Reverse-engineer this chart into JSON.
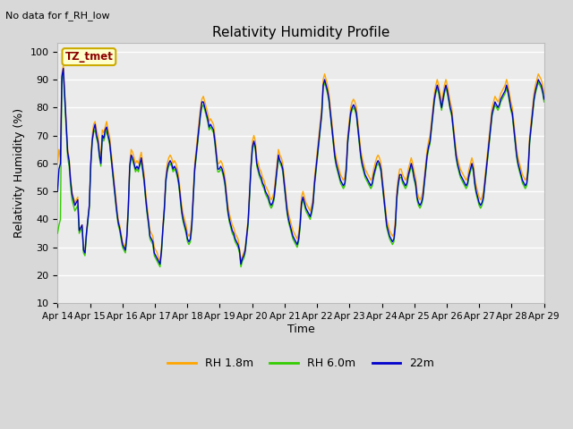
{
  "title": "Relativity Humidity Profile",
  "subtitle": "No data for f_RH_low",
  "ylabel": "Relativity Humidity (%)",
  "xlabel": "Time",
  "ylim": [
    10,
    103
  ],
  "yticks": [
    10,
    20,
    30,
    40,
    50,
    60,
    70,
    80,
    90,
    100
  ],
  "tz_label": "TZ_tmet",
  "legend": [
    "RH 1.8m",
    "RH 6.0m",
    "22m"
  ],
  "colors": {
    "rh18": "#FFA500",
    "rh6": "#33CC00",
    "m22": "#0000CC"
  },
  "background_color": "#D8D8D8",
  "plot_bg": "#EBEBEB",
  "grid_color": "#FFFFFF",
  "x_tick_labels": [
    "Apr 14",
    "Apr 15",
    "Apr 16",
    "Apr 17",
    "Apr 18",
    "Apr 19",
    "Apr 20",
    "Apr 21",
    "Apr 22",
    "Apr 23",
    "Apr 24",
    "Apr 25",
    "Apr 26",
    "Apr 27",
    "Apr 28",
    "Apr 29"
  ],
  "figsize": [
    6.4,
    4.8
  ],
  "dpi": 100,
  "line_width": 1.0,
  "rh18": [
    60,
    65,
    62,
    92,
    95,
    85,
    75,
    65,
    62,
    55,
    50,
    48,
    46,
    47,
    48,
    36,
    37,
    38,
    29,
    28,
    35,
    40,
    45,
    60,
    70,
    74,
    75,
    72,
    70,
    65,
    62,
    72,
    71,
    73,
    75,
    72,
    70,
    65,
    60,
    55,
    50,
    45,
    40,
    38,
    35,
    32,
    31,
    30,
    35,
    45,
    60,
    65,
    64,
    62,
    60,
    61,
    60,
    62,
    64,
    60,
    56,
    50,
    45,
    40,
    36,
    35,
    34,
    30,
    29,
    28,
    26,
    25,
    30,
    38,
    45,
    55,
    60,
    62,
    63,
    62,
    60,
    61,
    60,
    58,
    55,
    50,
    45,
    42,
    40,
    38,
    35,
    34,
    35,
    40,
    50,
    60,
    65,
    70,
    75,
    80,
    83,
    84,
    82,
    80,
    78,
    75,
    76,
    75,
    74,
    70,
    65,
    60,
    60,
    61,
    60,
    58,
    55,
    50,
    45,
    42,
    40,
    38,
    37,
    35,
    34,
    33,
    30,
    25,
    27,
    28,
    30,
    35,
    40,
    50,
    60,
    68,
    70,
    68,
    62,
    60,
    58,
    57,
    55,
    54,
    52,
    51,
    50,
    48,
    47,
    48,
    50,
    55,
    60,
    65,
    63,
    62,
    60,
    55,
    50,
    45,
    42,
    40,
    38,
    36,
    35,
    34,
    33,
    35,
    40,
    48,
    50,
    48,
    46,
    45,
    44,
    43,
    45,
    48,
    55,
    60,
    65,
    70,
    75,
    80,
    90,
    92,
    90,
    88,
    85,
    80,
    75,
    70,
    65,
    62,
    60,
    58,
    56,
    55,
    54,
    55,
    60,
    70,
    75,
    80,
    82,
    83,
    82,
    80,
    75,
    70,
    65,
    62,
    60,
    58,
    57,
    56,
    55,
    54,
    55,
    58,
    60,
    62,
    63,
    62,
    60,
    55,
    50,
    45,
    40,
    38,
    36,
    35,
    34,
    35,
    40,
    50,
    55,
    58,
    58,
    56,
    55,
    54,
    55,
    58,
    60,
    62,
    60,
    57,
    55,
    50,
    48,
    47,
    48,
    50,
    55,
    60,
    65,
    68,
    70,
    75,
    80,
    85,
    88,
    90,
    88,
    85,
    82,
    85,
    88,
    90,
    88,
    85,
    82,
    80,
    75,
    70,
    65,
    62,
    60,
    58,
    57,
    56,
    55,
    54,
    55,
    58,
    60,
    62,
    60,
    55,
    52,
    50,
    48,
    47,
    48,
    50,
    55,
    60,
    65,
    70,
    75,
    80,
    82,
    84,
    83,
    82,
    83,
    85,
    86,
    87,
    88,
    90,
    88,
    85,
    82,
    80,
    75,
    70,
    65,
    62,
    60,
    58,
    56,
    55,
    54,
    55,
    60,
    70,
    75,
    80,
    85,
    88,
    90,
    92,
    91,
    90,
    88,
    85
  ],
  "rh6": [
    35,
    38,
    40,
    90,
    92,
    82,
    72,
    62,
    59,
    52,
    47,
    45,
    43,
    44,
    45,
    35,
    36,
    37,
    28,
    27,
    34,
    39,
    44,
    58,
    68,
    71,
    72,
    69,
    67,
    62,
    59,
    69,
    68,
    70,
    72,
    69,
    67,
    62,
    57,
    52,
    47,
    42,
    38,
    36,
    33,
    30,
    29,
    28,
    33,
    43,
    58,
    62,
    61,
    59,
    57,
    58,
    57,
    59,
    61,
    57,
    53,
    47,
    42,
    38,
    33,
    32,
    31,
    27,
    26,
    25,
    24,
    23,
    28,
    36,
    43,
    53,
    57,
    59,
    60,
    59,
    57,
    58,
    57,
    55,
    52,
    47,
    42,
    39,
    37,
    35,
    32,
    31,
    32,
    37,
    47,
    57,
    62,
    67,
    72,
    77,
    80,
    81,
    79,
    77,
    75,
    72,
    73,
    72,
    71,
    67,
    62,
    57,
    57,
    58,
    57,
    55,
    52,
    47,
    42,
    39,
    37,
    35,
    34,
    32,
    31,
    30,
    28,
    23,
    25,
    26,
    28,
    33,
    38,
    48,
    58,
    65,
    67,
    65,
    59,
    57,
    55,
    54,
    52,
    51,
    49,
    48,
    47,
    45,
    44,
    45,
    47,
    52,
    57,
    62,
    60,
    59,
    57,
    52,
    47,
    42,
    39,
    37,
    35,
    33,
    32,
    31,
    30,
    32,
    37,
    45,
    47,
    45,
    43,
    42,
    41,
    40,
    42,
    45,
    52,
    57,
    62,
    67,
    72,
    77,
    87,
    89,
    87,
    85,
    82,
    77,
    72,
    67,
    62,
    59,
    57,
    55,
    53,
    52,
    51,
    52,
    57,
    67,
    72,
    77,
    79,
    80,
    79,
    77,
    72,
    67,
    62,
    59,
    57,
    55,
    54,
    53,
    52,
    51,
    52,
    55,
    57,
    59,
    60,
    59,
    57,
    52,
    47,
    42,
    37,
    35,
    33,
    32,
    31,
    32,
    37,
    47,
    52,
    55,
    55,
    53,
    52,
    51,
    52,
    55,
    57,
    59,
    57,
    54,
    52,
    47,
    45,
    44,
    45,
    47,
    52,
    57,
    62,
    65,
    67,
    72,
    77,
    82,
    85,
    87,
    85,
    82,
    79,
    82,
    85,
    87,
    85,
    82,
    79,
    77,
    72,
    67,
    62,
    59,
    57,
    55,
    54,
    53,
    52,
    51,
    52,
    55,
    57,
    59,
    57,
    52,
    49,
    47,
    45,
    44,
    45,
    47,
    52,
    57,
    62,
    67,
    72,
    77,
    79,
    81,
    80,
    79,
    80,
    82,
    83,
    84,
    85,
    87,
    85,
    82,
    79,
    77,
    72,
    67,
    62,
    59,
    57,
    55,
    53,
    52,
    51,
    52,
    57,
    67,
    72,
    77,
    82,
    85,
    87,
    89,
    88,
    87,
    85,
    82
  ],
  "m22": [
    50,
    58,
    60,
    91,
    94,
    84,
    74,
    64,
    61,
    54,
    49,
    47,
    45,
    46,
    47,
    36,
    37,
    38,
    29,
    28,
    35,
    40,
    45,
    60,
    68,
    72,
    74,
    70,
    68,
    63,
    60,
    70,
    69,
    72,
    73,
    70,
    68,
    63,
    58,
    53,
    48,
    43,
    39,
    37,
    34,
    31,
    30,
    29,
    34,
    44,
    59,
    63,
    62,
    60,
    58,
    59,
    58,
    60,
    62,
    58,
    54,
    48,
    43,
    39,
    34,
    33,
    32,
    28,
    27,
    26,
    25,
    24,
    29,
    37,
    44,
    54,
    58,
    60,
    61,
    60,
    58,
    59,
    58,
    56,
    53,
    48,
    43,
    40,
    38,
    36,
    33,
    32,
    33,
    38,
    48,
    58,
    63,
    68,
    73,
    78,
    82,
    82,
    80,
    78,
    76,
    73,
    74,
    73,
    72,
    68,
    63,
    58,
    58,
    59,
    58,
    56,
    53,
    48,
    43,
    40,
    38,
    36,
    35,
    33,
    32,
    31,
    29,
    24,
    26,
    27,
    29,
    34,
    39,
    49,
    59,
    66,
    68,
    66,
    60,
    58,
    56,
    55,
    53,
    52,
    50,
    49,
    48,
    46,
    45,
    46,
    48,
    53,
    58,
    63,
    61,
    60,
    58,
    53,
    48,
    43,
    40,
    38,
    36,
    34,
    33,
    32,
    31,
    33,
    38,
    46,
    48,
    46,
    44,
    43,
    42,
    41,
    43,
    46,
    53,
    58,
    63,
    68,
    73,
    78,
    88,
    90,
    88,
    86,
    83,
    78,
    73,
    68,
    63,
    60,
    58,
    56,
    54,
    53,
    52,
    53,
    58,
    68,
    73,
    78,
    80,
    81,
    80,
    78,
    73,
    68,
    63,
    60,
    58,
    56,
    55,
    54,
    53,
    52,
    53,
    56,
    58,
    60,
    61,
    60,
    58,
    53,
    48,
    43,
    38,
    36,
    34,
    33,
    32,
    33,
    38,
    48,
    53,
    56,
    56,
    54,
    53,
    52,
    53,
    56,
    58,
    60,
    58,
    55,
    53,
    48,
    46,
    45,
    46,
    48,
    53,
    58,
    63,
    66,
    68,
    73,
    78,
    83,
    86,
    88,
    86,
    83,
    80,
    83,
    86,
    88,
    86,
    83,
    80,
    78,
    73,
    68,
    63,
    60,
    58,
    56,
    55,
    54,
    53,
    52,
    53,
    56,
    58,
    60,
    58,
    53,
    50,
    48,
    46,
    45,
    46,
    48,
    53,
    58,
    63,
    68,
    73,
    78,
    80,
    82,
    81,
    80,
    81,
    83,
    84,
    85,
    86,
    88,
    86,
    83,
    80,
    78,
    73,
    68,
    63,
    60,
    58,
    56,
    54,
    53,
    52,
    53,
    58,
    68,
    73,
    78,
    83,
    86,
    88,
    90,
    89,
    88,
    86,
    83
  ]
}
